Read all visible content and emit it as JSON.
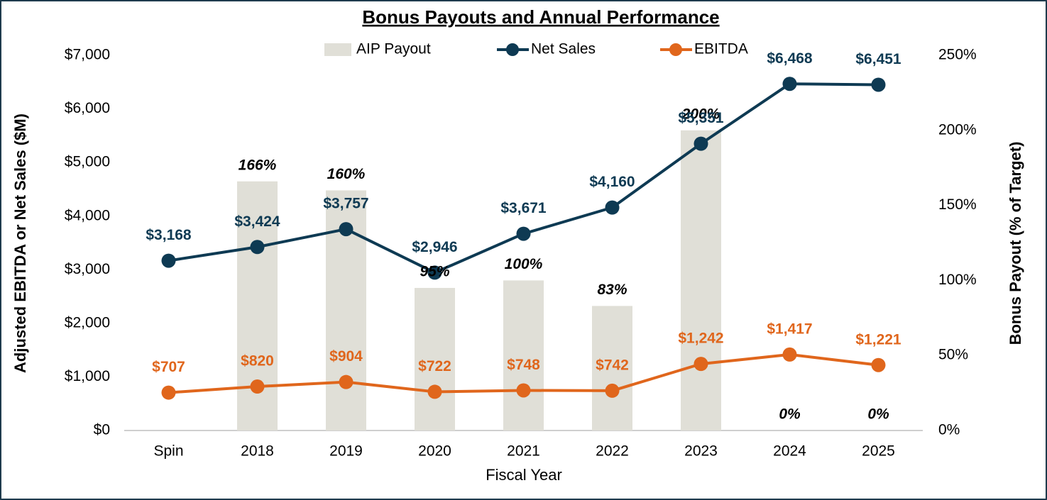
{
  "chart_data": {
    "type": "combo",
    "title": "Bonus Payouts and Annual Performance",
    "x_label": "Fiscal Year",
    "y_label": "Adjusted EBITDA or Net Sales ($M)",
    "y2_label": "Bonus Payout (% of Target)",
    "categories": [
      "Spin",
      "2018",
      "2019",
      "2020",
      "2021",
      "2022",
      "2023",
      "2024",
      "2025"
    ],
    "series": [
      {
        "name": "AIP Payout",
        "type": "bar",
        "axis": "y2",
        "color": "#e0dfd7",
        "values": [
          null,
          166,
          160,
          95,
          100,
          83,
          200,
          0,
          0
        ],
        "value_labels": [
          null,
          "166%",
          "160%",
          "95%",
          "100%",
          "83%",
          "200%",
          "0%",
          "0%"
        ]
      },
      {
        "name": "Net Sales",
        "type": "line",
        "color": "#0e3a53",
        "values": [
          3168,
          3424,
          3757,
          2946,
          3671,
          4160,
          5351,
          6468,
          6451
        ],
        "value_labels": [
          "$3,168",
          "$3,424",
          "$3,757",
          "$2,946",
          "$3,671",
          "$4,160",
          "$5,351",
          "$6,468",
          "$6,451"
        ]
      },
      {
        "name": "EBITDA",
        "type": "line",
        "color": "#e0661c",
        "values": [
          707,
          820,
          904,
          722,
          748,
          742,
          1242,
          1417,
          1221
        ],
        "value_labels": [
          "$707",
          "$820",
          "$904",
          "$722",
          "$748",
          "$742",
          "$1,242",
          "$1,417",
          "$1,221"
        ]
      }
    ],
    "ylim": [
      0,
      7000
    ],
    "yticks": [
      {
        "value": 0,
        "label": "$0"
      },
      {
        "value": 1000,
        "label": "$1,000"
      },
      {
        "value": 2000,
        "label": "$2,000"
      },
      {
        "value": 3000,
        "label": "$3,000"
      },
      {
        "value": 4000,
        "label": "$4,000"
      },
      {
        "value": 5000,
        "label": "$5,000"
      },
      {
        "value": 6000,
        "label": "$6,000"
      },
      {
        "value": 7000,
        "label": "$7,000"
      }
    ],
    "y2lim": [
      0,
      250
    ],
    "y2ticks": [
      {
        "value": 0,
        "label": "0%"
      },
      {
        "value": 50,
        "label": "50%"
      },
      {
        "value": 100,
        "label": "100%"
      },
      {
        "value": 150,
        "label": "150%"
      },
      {
        "value": 200,
        "label": "200%"
      },
      {
        "value": 250,
        "label": "250%"
      }
    ],
    "grid": false
  }
}
